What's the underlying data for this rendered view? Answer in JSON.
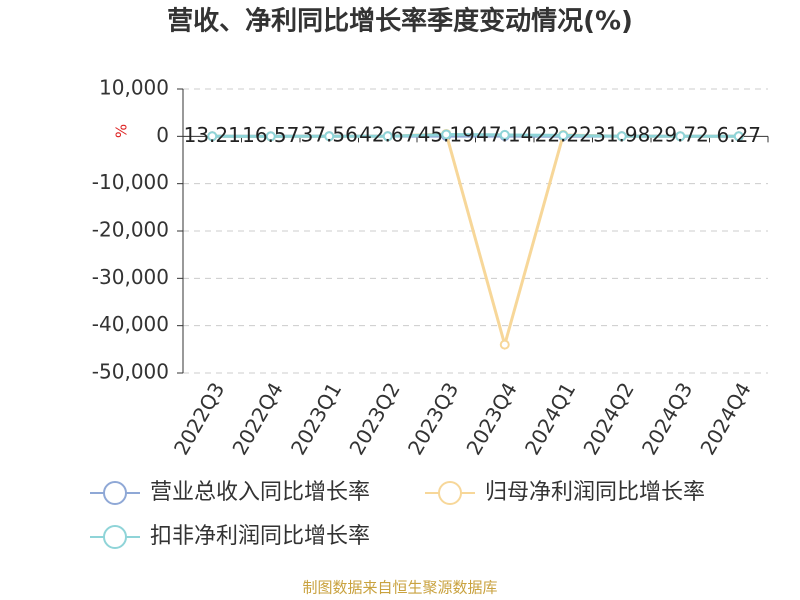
{
  "chart_data": {
    "type": "line",
    "title": "营收、净利同比增长率季度变动情况(%)",
    "y_label": "%",
    "source": "制图数据来自恒生聚源数据库",
    "categories": [
      "2022Q3",
      "2022Q4",
      "2023Q1",
      "2023Q2",
      "2023Q3",
      "2023Q4",
      "2024Q1",
      "2024Q2",
      "2024Q3",
      "2024Q4"
    ],
    "series": [
      {
        "name": "营业总收入同比增长率",
        "color": "#8fa8d6",
        "values": [
          13.21,
          16.57,
          37.56,
          42.67,
          45.19,
          47.14,
          22.22,
          31.98,
          29.72,
          6.27
        ],
        "show_labels": true
      },
      {
        "name": "归母净利润同比增长率",
        "color": "#f7d799",
        "values": [
          20,
          -15,
          30,
          10,
          500,
          -44000,
          300,
          25,
          15,
          5
        ]
      },
      {
        "name": "扣非净利润同比增长率",
        "color": "#8fd4d8",
        "values": [
          15,
          -20,
          25,
          10,
          400,
          300,
          200,
          20,
          10,
          5
        ]
      }
    ],
    "ylim": [
      -50000,
      10000
    ],
    "yticks": [
      {
        "value": 10000,
        "label": "10,000"
      },
      0,
      {
        "value": -10000,
        "label": "-10,000"
      },
      {
        "value": -20000,
        "label": "-20,000"
      },
      {
        "value": -30000,
        "label": "-30,000"
      },
      {
        "value": -40000,
        "label": "-40,000"
      },
      {
        "value": -50000,
        "label": "-50,000"
      }
    ],
    "grid": true,
    "legend": "bottom"
  }
}
